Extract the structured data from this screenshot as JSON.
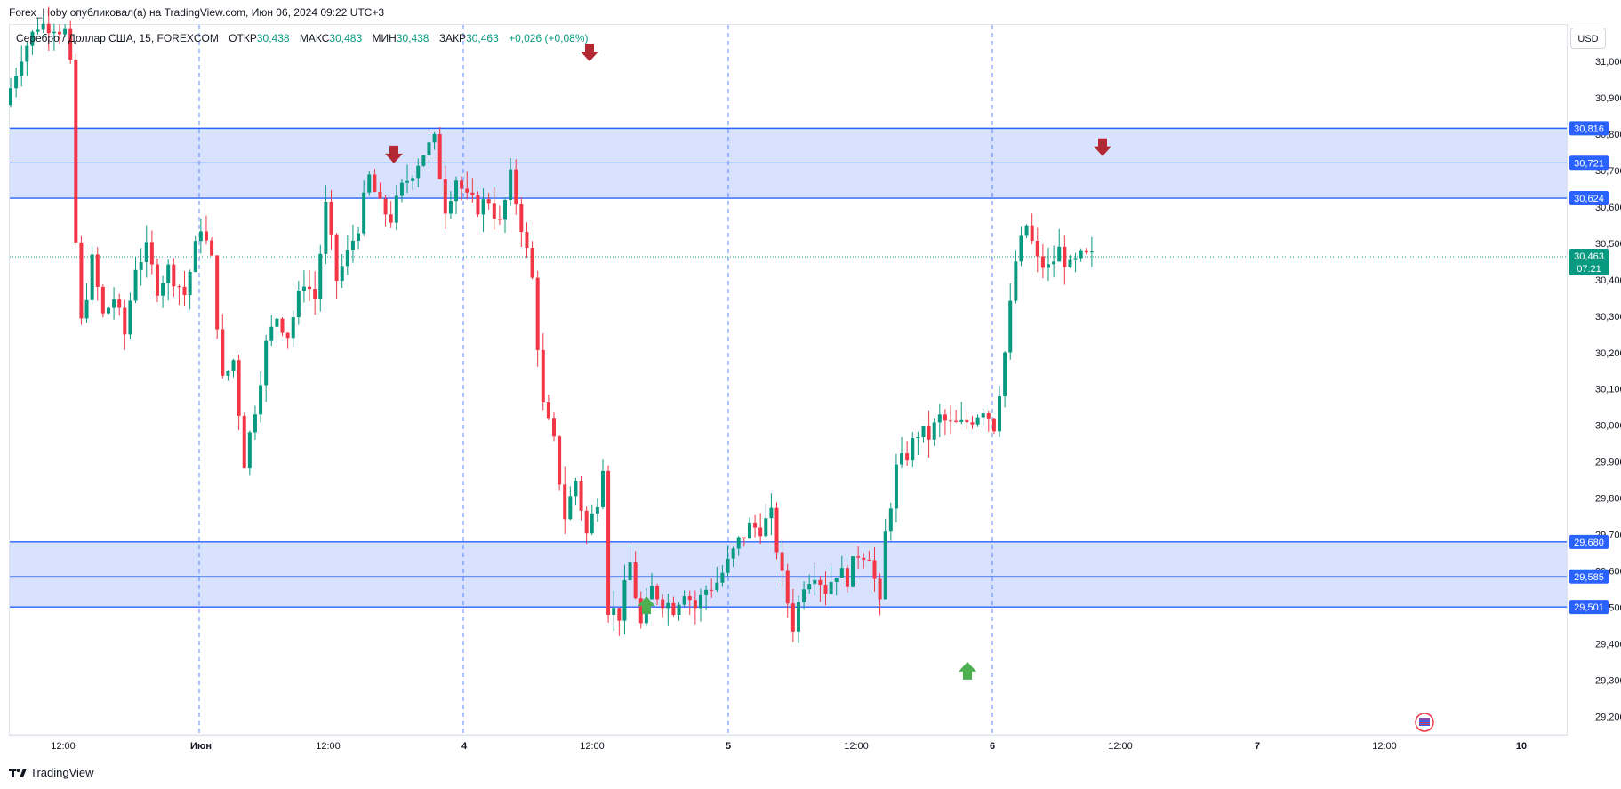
{
  "header": {
    "publisher_line": "Forex_Hoby опубликовал(а) на TradingView.com, Июн 06, 2024 09:22 UTC+3"
  },
  "legend": {
    "symbol": "Серебро / Доллар США, 15, FOREXCOM",
    "open_label": "ОТКР",
    "open_value": "30,438",
    "high_label": "МАКС",
    "high_value": "30,483",
    "low_label": "МИН",
    "low_value": "30,438",
    "close_label": "ЗАКР",
    "close_value": "30,463",
    "change": "+0,026 (+0,08%)"
  },
  "currency_button": "USD",
  "footer": {
    "brand": "TradingView"
  },
  "colors": {
    "up": "#089981",
    "down": "#f23645",
    "zone_fill": "#d1dcfd",
    "zone_line": "#2962ff",
    "arrow_down": "#b22833",
    "arrow_up": "#4caf50",
    "price_tag": "#089981"
  },
  "chart_data": {
    "type": "candlestick",
    "symbol": "XAGUSD",
    "timeframe": "15",
    "ylim": [
      29.15,
      31.1
    ],
    "y_ticks": [
      "31,000",
      "30,900",
      "30,800",
      "30,700",
      "30,600",
      "30,500",
      "30,400",
      "30,300",
      "30,200",
      "30,100",
      "30,000",
      "29,900",
      "29,800",
      "29,700",
      "29,600",
      "29,500",
      "29,400",
      "29,300",
      "29,200"
    ],
    "y_tick_values": [
      31.0,
      30.9,
      30.8,
      30.7,
      30.6,
      30.5,
      30.4,
      30.3,
      30.2,
      30.1,
      30.0,
      29.9,
      29.8,
      29.7,
      29.6,
      29.5,
      29.4,
      29.3,
      29.2
    ],
    "x_ticks": [
      "12:00",
      "Июн",
      "12:00",
      "4",
      "12:00",
      "5",
      "12:00",
      "6",
      "12:00",
      "7",
      "12:00",
      "10"
    ],
    "day_separators": [
      "Июн",
      "4",
      "5",
      "6"
    ],
    "zones": [
      {
        "top": 30.816,
        "mid": 30.721,
        "bottom": 30.624
      },
      {
        "top": 29.68,
        "mid": 29.585,
        "bottom": 29.501
      }
    ],
    "price_labels": [
      "30,816",
      "30,721",
      "30,624",
      "29,680",
      "29,585",
      "29,501"
    ],
    "current_price": 30.463,
    "current_price_label": "30,463",
    "countdown": "07:21",
    "signals": [
      {
        "type": "sell",
        "price": 30.7
      },
      {
        "type": "sell",
        "price": 30.98
      },
      {
        "type": "sell",
        "price": 30.72
      },
      {
        "type": "buy",
        "price": 29.55
      },
      {
        "type": "buy",
        "price": 29.37
      }
    ],
    "price_path": [
      [
        0,
        30.88
      ],
      [
        3,
        31.02
      ],
      [
        6,
        31.1
      ],
      [
        9,
        31.1
      ],
      [
        11,
        31.08
      ],
      [
        12,
        30.98
      ],
      [
        13,
        30.5
      ],
      [
        14,
        30.28
      ],
      [
        16,
        30.45
      ],
      [
        18,
        30.3
      ],
      [
        20,
        30.35
      ],
      [
        22,
        30.25
      ],
      [
        24,
        30.44
      ],
      [
        26,
        30.48
      ],
      [
        28,
        30.38
      ],
      [
        30,
        30.43
      ],
      [
        33,
        30.36
      ],
      [
        36,
        30.55
      ],
      [
        38,
        30.45
      ],
      [
        40,
        30.12
      ],
      [
        42,
        30.18
      ],
      [
        44,
        29.9
      ],
      [
        46,
        30.05
      ],
      [
        48,
        30.22
      ],
      [
        50,
        30.3
      ],
      [
        52,
        30.25
      ],
      [
        55,
        30.4
      ],
      [
        57,
        30.35
      ],
      [
        59,
        30.6
      ],
      [
        61,
        30.4
      ],
      [
        63,
        30.47
      ],
      [
        65,
        30.55
      ],
      [
        67,
        30.68
      ],
      [
        69,
        30.6
      ],
      [
        71,
        30.57
      ],
      [
        73,
        30.65
      ],
      [
        75,
        30.7
      ],
      [
        77,
        30.75
      ],
      [
        79,
        30.78
      ],
      [
        81,
        30.6
      ],
      [
        83,
        30.68
      ],
      [
        85,
        30.62
      ],
      [
        87,
        30.6
      ],
      [
        89,
        30.62
      ],
      [
        91,
        30.55
      ],
      [
        93,
        30.68
      ],
      [
        95,
        30.55
      ],
      [
        97,
        30.4
      ],
      [
        99,
        30.05
      ],
      [
        101,
        29.95
      ],
      [
        103,
        29.75
      ],
      [
        105,
        29.85
      ],
      [
        107,
        29.7
      ],
      [
        109,
        29.8
      ],
      [
        110,
        29.9
      ],
      [
        111,
        29.5
      ],
      [
        113,
        29.48
      ],
      [
        115,
        29.62
      ],
      [
        117,
        29.45
      ],
      [
        119,
        29.55
      ],
      [
        121,
        29.52
      ],
      [
        123,
        29.5
      ],
      [
        125,
        29.55
      ],
      [
        127,
        29.5
      ],
      [
        129,
        29.55
      ],
      [
        131,
        29.57
      ],
      [
        133,
        29.62
      ],
      [
        135,
        29.68
      ],
      [
        137,
        29.72
      ],
      [
        139,
        29.72
      ],
      [
        141,
        29.75
      ],
      [
        143,
        29.58
      ],
      [
        145,
        29.45
      ],
      [
        147,
        29.57
      ],
      [
        149,
        29.6
      ],
      [
        151,
        29.55
      ],
      [
        153,
        29.6
      ],
      [
        155,
        29.58
      ],
      [
        157,
        29.65
      ],
      [
        159,
        29.65
      ],
      [
        161,
        29.5
      ],
      [
        162,
        29.7
      ],
      [
        164,
        29.88
      ],
      [
        166,
        29.92
      ],
      [
        168,
        29.98
      ],
      [
        170,
        29.97
      ],
      [
        172,
        30.02
      ],
      [
        174,
        30.0
      ],
      [
        176,
        30.0
      ],
      [
        178,
        30.02
      ],
      [
        180,
        30.05
      ],
      [
        182,
        30.0
      ],
      [
        184,
        30.2
      ],
      [
        186,
        30.45
      ],
      [
        188,
        30.55
      ],
      [
        190,
        30.45
      ],
      [
        192,
        30.43
      ],
      [
        194,
        30.48
      ],
      [
        196,
        30.43
      ],
      [
        198,
        30.46
      ]
    ]
  }
}
